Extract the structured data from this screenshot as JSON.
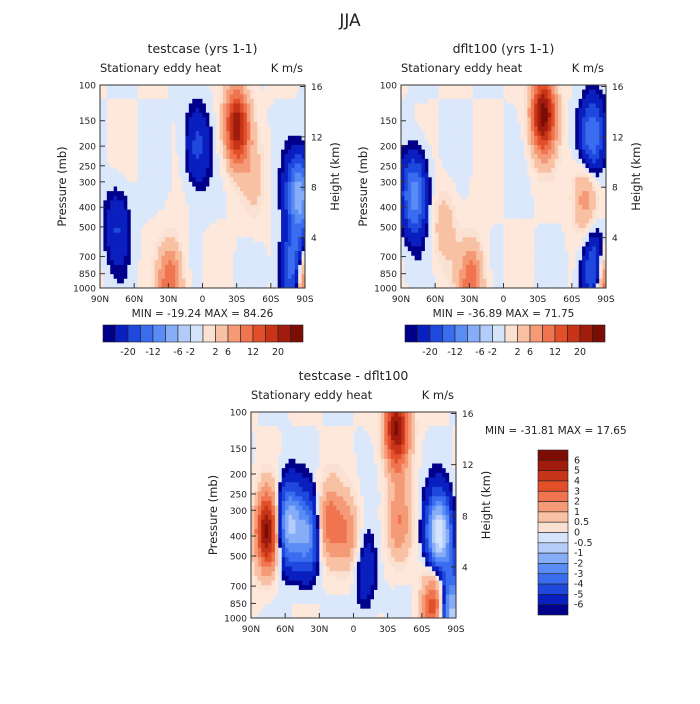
{
  "figure": {
    "title": "JJA"
  },
  "colors": {
    "neg": "#2a5bd7",
    "pos": "#e2502a"
  },
  "chart_data": [
    {
      "type": "heatmap",
      "title": "testcase (yrs 1-1)",
      "subtitle_left": "Stationary eddy heat",
      "subtitle_right": "K m/s",
      "ylabel": "Pressure (mb)",
      "ylabel_right": "Height (km)",
      "x_ticks": [
        "90N",
        "60N",
        "30N",
        "0",
        "30S",
        "60S",
        "90S"
      ],
      "y_ticks": [
        100,
        150,
        200,
        250,
        300,
        400,
        500,
        700,
        850,
        1000
      ],
      "height_ticks": [
        16,
        12,
        8,
        4
      ],
      "min_label": "MIN = -19.24",
      "max_label": "MAX = 84.26",
      "colorbar": {
        "labels": [
          "-20",
          "-12",
          "-6",
          "-2",
          "2",
          "6",
          "12",
          "20"
        ]
      },
      "features": [
        {
          "lat": -30,
          "p": 160,
          "sign": 1,
          "strength": 0.85
        },
        {
          "lat": -85,
          "p": 350,
          "sign": -1,
          "strength": 0.7
        },
        {
          "lat": -82,
          "p": 850,
          "sign": -1,
          "strength": 0.95
        },
        {
          "lat": -88,
          "p": 950,
          "sign": 1,
          "strength": 1.0
        },
        {
          "lat": 75,
          "p": 500,
          "sign": -1,
          "strength": 0.25
        },
        {
          "lat": 28,
          "p": 950,
          "sign": 1,
          "strength": 0.5
        },
        {
          "lat": 5,
          "p": 200,
          "sign": -1,
          "strength": 0.3
        },
        {
          "lat": -45,
          "p": 300,
          "sign": 1,
          "strength": 0.15
        }
      ]
    },
    {
      "type": "heatmap",
      "title": "dflt100 (yrs 1-1)",
      "subtitle_left": "Stationary eddy heat",
      "subtitle_right": "K m/s",
      "ylabel": "Pressure (mb)",
      "ylabel_right": "Height (km)",
      "x_ticks": [
        "90N",
        "60N",
        "30N",
        "0",
        "30S",
        "60S",
        "90S"
      ],
      "y_ticks": [
        100,
        150,
        200,
        250,
        300,
        400,
        500,
        700,
        850,
        1000
      ],
      "height_ticks": [
        16,
        12,
        8,
        4
      ],
      "min_label": "MIN = -36.89",
      "max_label": "MAX = 71.75",
      "colorbar": {
        "labels": [
          "-20",
          "-12",
          "-6",
          "-2",
          "2",
          "6",
          "12",
          "20"
        ]
      },
      "features": [
        {
          "lat": -35,
          "p": 140,
          "sign": 1,
          "strength": 0.95
        },
        {
          "lat": 78,
          "p": 350,
          "sign": -1,
          "strength": 0.6
        },
        {
          "lat": -78,
          "p": 180,
          "sign": -1,
          "strength": 0.5
        },
        {
          "lat": -82,
          "p": 850,
          "sign": -1,
          "strength": 0.9
        },
        {
          "lat": -88,
          "p": 950,
          "sign": 1,
          "strength": 1.0
        },
        {
          "lat": -72,
          "p": 350,
          "sign": 1,
          "strength": 0.35
        },
        {
          "lat": 28,
          "p": 950,
          "sign": 1,
          "strength": 0.5
        },
        {
          "lat": 52,
          "p": 500,
          "sign": 1,
          "strength": 0.2
        }
      ]
    },
    {
      "type": "heatmap",
      "title": "testcase - dflt100",
      "subtitle_left": "Stationary eddy heat",
      "subtitle_right": "K m/s",
      "ylabel": "Pressure (mb)",
      "ylabel_right": "Height (km)",
      "x_ticks": [
        "90N",
        "60N",
        "30N",
        "0",
        "30S",
        "60S",
        "90S"
      ],
      "y_ticks": [
        100,
        150,
        200,
        250,
        300,
        400,
        500,
        700,
        850,
        1000
      ],
      "height_ticks": [
        16,
        12,
        8,
        4
      ],
      "min_label": "MIN = -31.81",
      "max_label": "MAX =  17.65",
      "colorbar": {
        "labels": [
          "6",
          "5",
          "4",
          "3",
          "2",
          "1",
          "0.5",
          "0",
          "-0.5",
          "-1",
          "-2",
          "-3",
          "-4",
          "-5",
          "-6"
        ]
      },
      "features": [
        {
          "lat": 75,
          "p": 380,
          "sign": 1,
          "strength": 0.95
        },
        {
          "lat": 58,
          "p": 350,
          "sign": -1,
          "strength": 0.8
        },
        {
          "lat": 40,
          "p": 400,
          "sign": -1,
          "strength": 0.6
        },
        {
          "lat": 22,
          "p": 350,
          "sign": 1,
          "strength": 0.45
        },
        {
          "lat": 5,
          "p": 400,
          "sign": 1,
          "strength": 0.35
        },
        {
          "lat": -38,
          "p": 120,
          "sign": 1,
          "strength": 0.9
        },
        {
          "lat": -40,
          "p": 350,
          "sign": 1,
          "strength": 0.35
        },
        {
          "lat": -75,
          "p": 400,
          "sign": -1,
          "strength": 1.0
        },
        {
          "lat": -72,
          "p": 850,
          "sign": 1,
          "strength": 0.7
        },
        {
          "lat": -85,
          "p": 950,
          "sign": -1,
          "strength": 0.9
        },
        {
          "lat": -10,
          "p": 600,
          "sign": -1,
          "strength": 0.25
        }
      ]
    }
  ]
}
